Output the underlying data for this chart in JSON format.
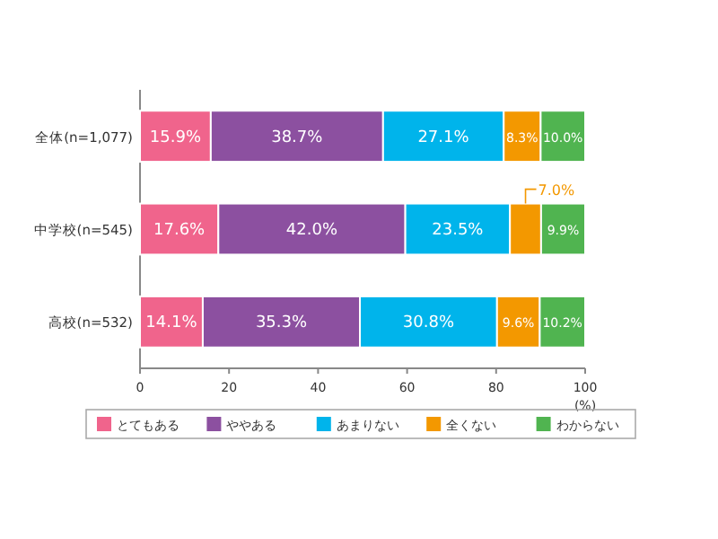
{
  "chart_data": {
    "type": "bar",
    "orientation": "horizontal",
    "stacked": true,
    "categories": [
      "全体(n=1,077)",
      "中学校(n=545)",
      "高校(n=532)"
    ],
    "series": [
      {
        "name": "とてもある",
        "color": "#f0648c",
        "values": [
          15.9,
          17.6,
          14.1
        ],
        "value_labels": [
          "15.9%",
          "17.6%",
          "14.1%"
        ]
      },
      {
        "name": "ややある",
        "color": "#8c50a0",
        "values": [
          38.7,
          42.0,
          35.3
        ],
        "value_labels": [
          "38.7%",
          "42.0%",
          "35.3%"
        ]
      },
      {
        "name": "あまりない",
        "color": "#00b4eb",
        "values": [
          27.1,
          23.5,
          30.8
        ],
        "value_labels": [
          "27.1%",
          "23.5%",
          "30.8%"
        ]
      },
      {
        "name": "全くない",
        "color": "#f39800",
        "values": [
          8.3,
          7.0,
          9.6
        ],
        "value_labels": [
          "8.3%",
          "7.0%",
          "9.6%"
        ]
      },
      {
        "name": "わからない",
        "color": "#50b450",
        "values": [
          10.0,
          9.9,
          10.2
        ],
        "value_labels": [
          "10.0%",
          "9.9%",
          "10.2%"
        ]
      }
    ],
    "xlim": [
      0,
      100
    ],
    "xticks": [
      0,
      20,
      40,
      60,
      80,
      100
    ],
    "xlabel": "(%)",
    "legend": "bottom"
  }
}
